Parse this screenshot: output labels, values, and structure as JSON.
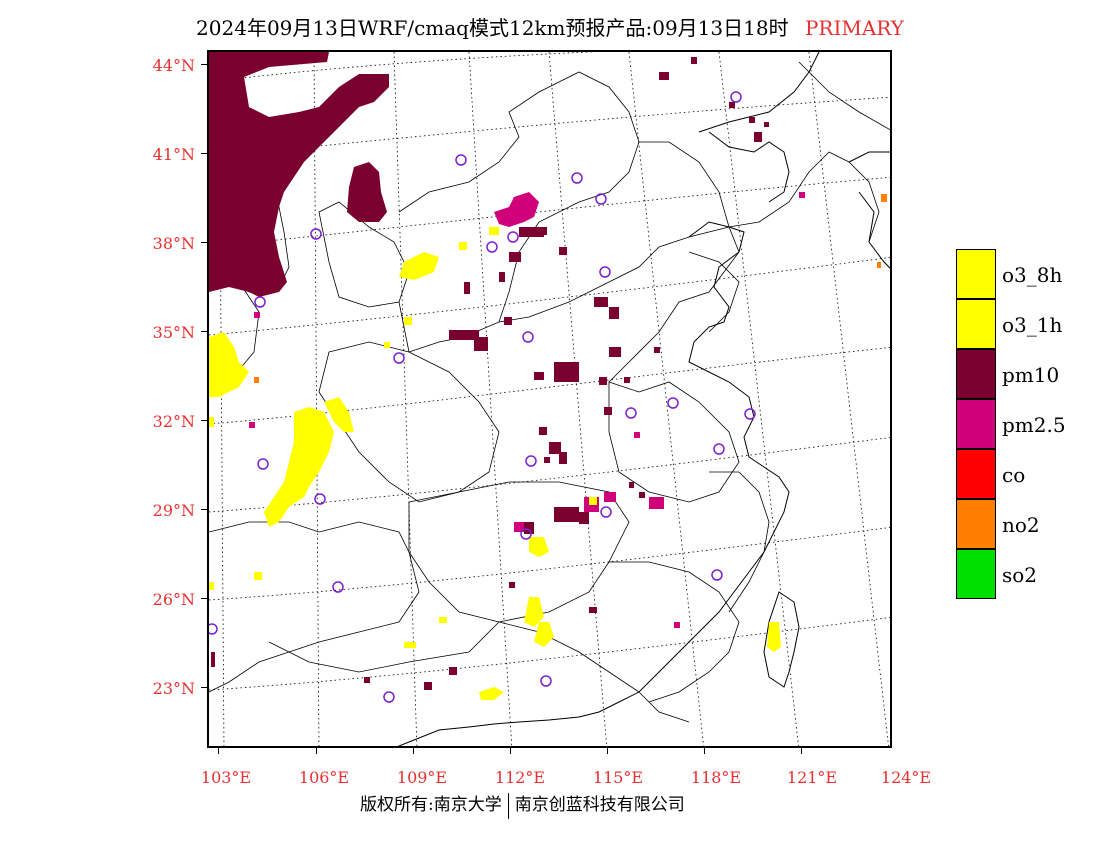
{
  "title": {
    "main": "2024年09月13日WRF/cmaq模式12km预报产品:09月13日18时",
    "type": "PRIMARY"
  },
  "axes": {
    "lat_labels": [
      "44°N",
      "41°N",
      "38°N",
      "35°N",
      "32°N",
      "29°N",
      "26°N",
      "23°N"
    ],
    "lon_labels": [
      "103°E",
      "106°E",
      "109°E",
      "112°E",
      "115°E",
      "118°E",
      "121°E",
      "124°E"
    ]
  },
  "legend": [
    {
      "label": "o3_8h",
      "color": "#ffff00"
    },
    {
      "label": "o3_1h",
      "color": "#ffff00"
    },
    {
      "label": "pm10",
      "color": "#7a0030"
    },
    {
      "label": "pm2.5",
      "color": "#d0007a"
    },
    {
      "label": "co",
      "color": "#ff0000"
    },
    {
      "label": "no2",
      "color": "#ff8000"
    },
    {
      "label": "so2",
      "color": "#00e000"
    }
  ],
  "colors": {
    "pm10": "#7a0030",
    "pm25": "#d0007a",
    "o3": "#ffff00",
    "no2": "#ff8000",
    "station": "#7a20d0",
    "label_red": "#e83030"
  },
  "footer": {
    "left": "版权所有:南京大学",
    "right": "南京创蓝科技有限公司"
  }
}
